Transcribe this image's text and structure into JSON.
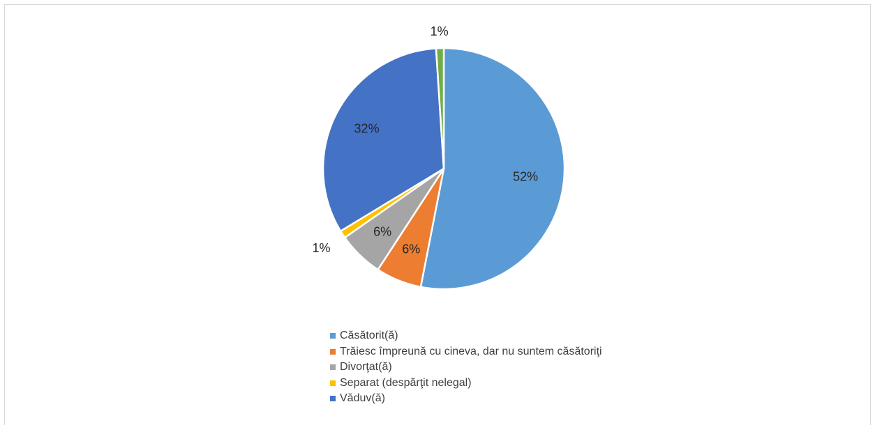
{
  "chart_data": {
    "type": "pie",
    "title": "",
    "legend_position": "bottom",
    "slices": [
      {
        "label": "Căsătorit(ă)",
        "value": 52,
        "value_label": "52%",
        "color": "#5B9BD5"
      },
      {
        "label": "Trăiesc împreună cu cineva, dar nu suntem căsătoriţi",
        "value": 6,
        "value_label": "6%",
        "color": "#ED7D31"
      },
      {
        "label": "Divorţat(ă)",
        "value": 6,
        "value_label": "6%",
        "color": "#A5A5A5"
      },
      {
        "label": "Separat (despărţit nelegal)",
        "value": 1,
        "value_label": "1%",
        "color": "#FFC000"
      },
      {
        "label": "Văduv(ă)",
        "value": 32,
        "value_label": "32%",
        "color": "#4472C4"
      },
      {
        "label": "",
        "value": 1,
        "value_label": "1%",
        "color": "#70AD47"
      }
    ]
  }
}
